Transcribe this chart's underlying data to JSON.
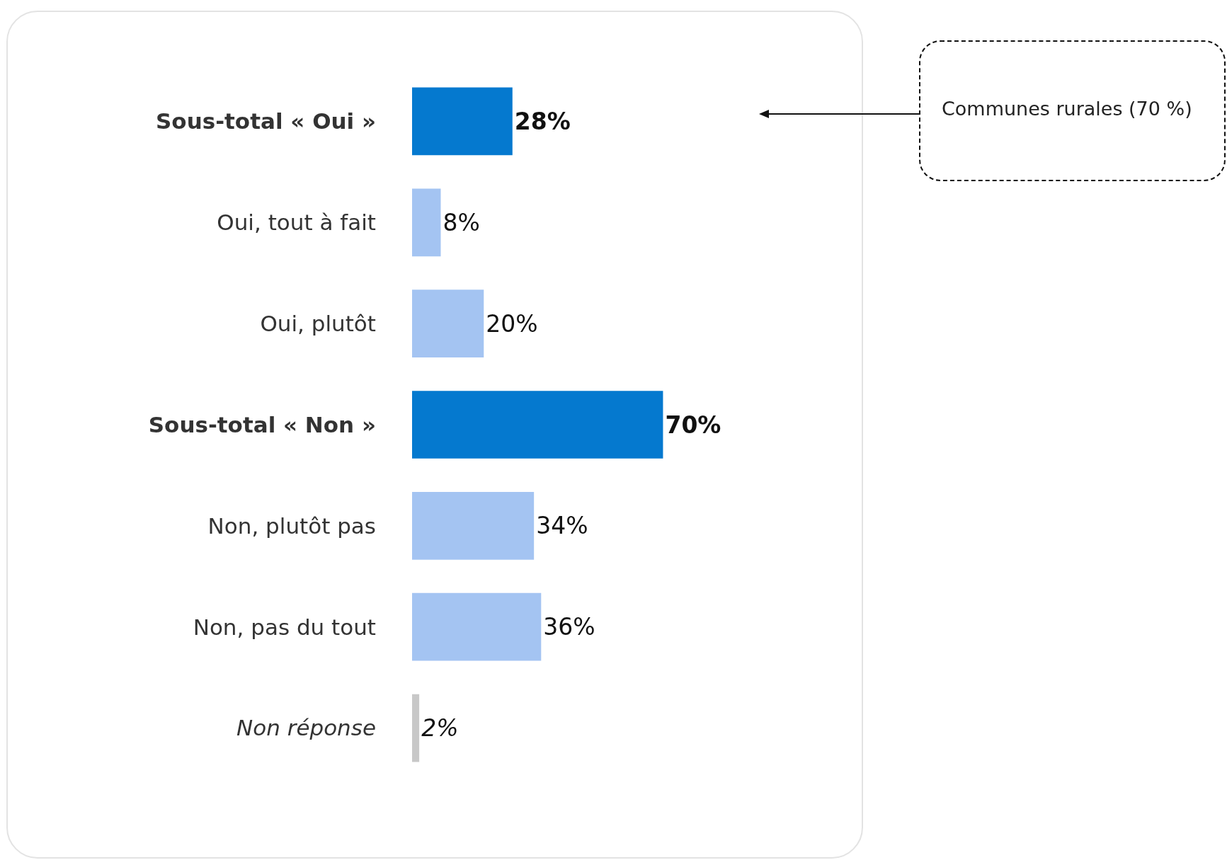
{
  "chart_data": {
    "type": "bar",
    "orientation": "horizontal",
    "categories": [
      "Sous-total « Oui »",
      "Oui, tout à fait",
      "Oui, plutôt",
      "Sous-total « Non »",
      "Non, plutôt pas",
      "Non, pas du tout",
      "Non réponse"
    ],
    "values": [
      28,
      8,
      20,
      70,
      34,
      36,
      2
    ],
    "colors": [
      "#0579cf",
      "#a4c4f2",
      "#a4c4f2",
      "#0579cf",
      "#a4c4f2",
      "#a4c4f2",
      "#c8c8c8"
    ],
    "value_labels": [
      "28%",
      "8%",
      "20%",
      "70%",
      "34%",
      "36%",
      "2%"
    ],
    "annotations": [
      "Communes rurales (70 %)"
    ],
    "legend": false
  }
}
